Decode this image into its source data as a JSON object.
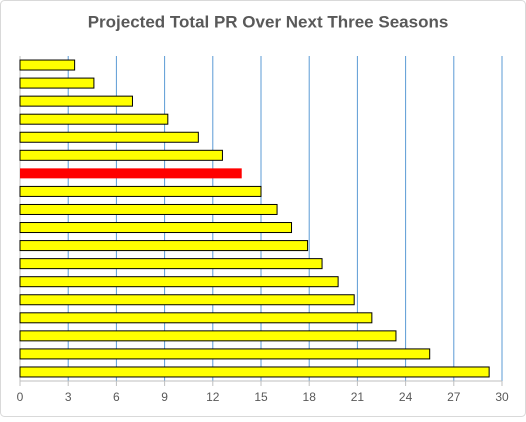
{
  "chart_data": {
    "type": "hbar",
    "title": "Projected Total PR Over Next Three Seasons",
    "categories": [
      null,
      null,
      null,
      null,
      null,
      null,
      null,
      null,
      null,
      null,
      null,
      null,
      null,
      null,
      null,
      null,
      null,
      null
    ],
    "values": [
      3.4,
      4.6,
      7.0,
      9.2,
      11.1,
      12.6,
      13.8,
      15.0,
      16.0,
      16.9,
      17.9,
      18.8,
      19.8,
      20.8,
      21.9,
      23.4,
      25.5,
      29.2
    ],
    "colors": [
      "#ffff00",
      "#ffff00",
      "#ffff00",
      "#ffff00",
      "#ffff00",
      "#ffff00",
      "#ff0000",
      "#ffff00",
      "#ffff00",
      "#ffff00",
      "#ffff00",
      "#ffff00",
      "#ffff00",
      "#ffff00",
      "#ffff00",
      "#ffff00",
      "#ffff00",
      "#ffff00"
    ],
    "xlim": [
      0,
      30
    ],
    "xticks": [
      0,
      3,
      6,
      9,
      12,
      15,
      18,
      21,
      24,
      27,
      30
    ],
    "grid": true,
    "grid_color": "#5b9bd5"
  }
}
